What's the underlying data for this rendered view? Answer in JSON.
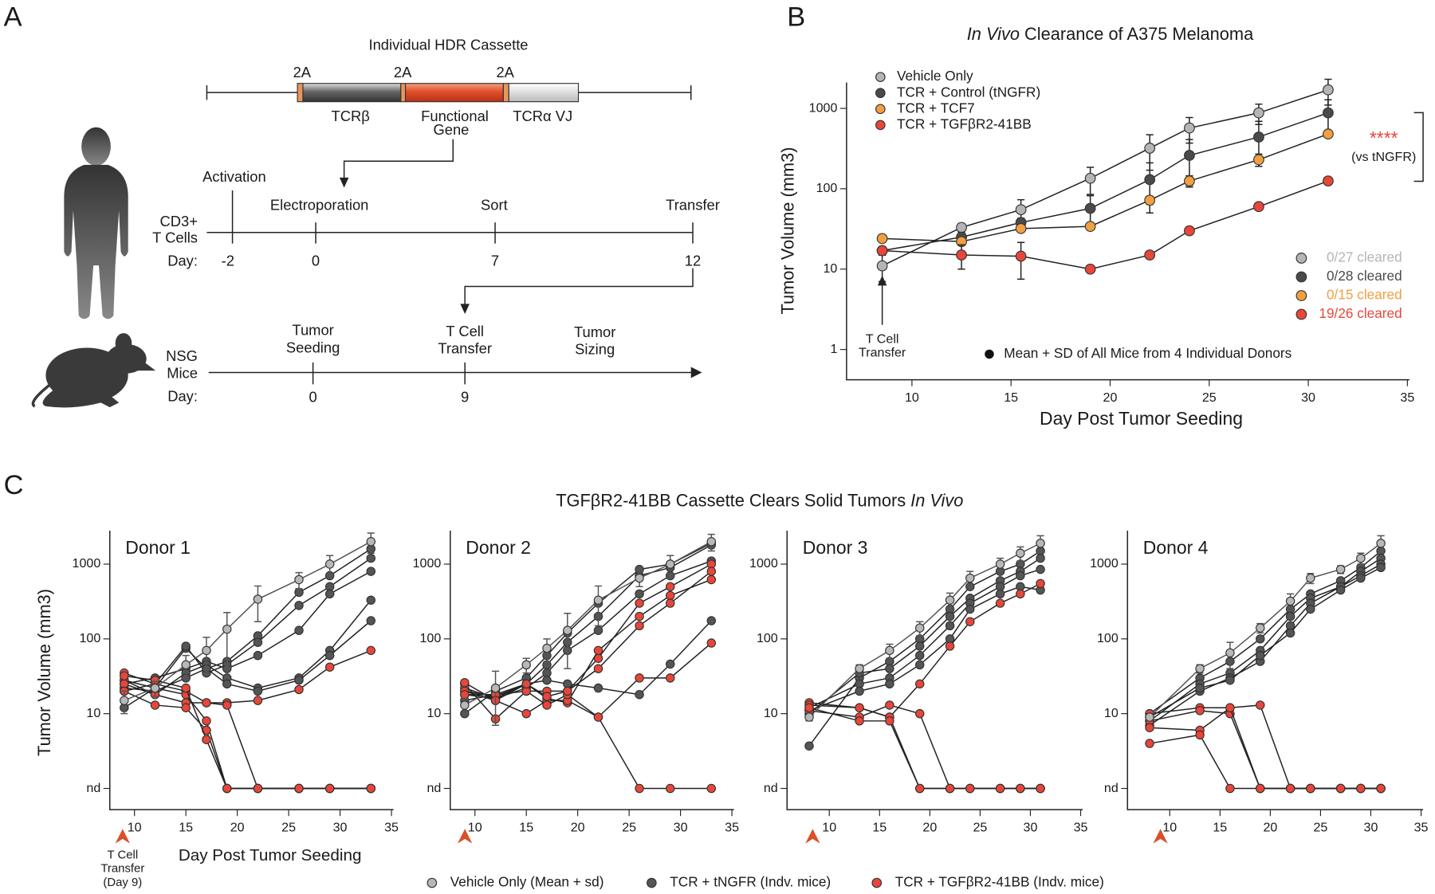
{
  "figure": {
    "panel_labels": [
      "A",
      "B",
      "C"
    ],
    "panel_c_title": "TGFβR2-41BB Cassette Clears Solid Tumors ",
    "panel_c_title_italic": "In Vivo",
    "panel_c_legend": [
      {
        "label": "Vehicle Only (Mean + sd)",
        "color": "#b8b8b8"
      },
      {
        "label": "TCR + tNGFR (Indv. mice)",
        "color": "#555555"
      },
      {
        "label": "TCR + TGFβR2-41BB (Indv. mice)",
        "color": "#e8463a"
      }
    ]
  },
  "panel_a": {
    "cassette_title": "Individual HDR Cassette",
    "cassette_2a": [
      "2A",
      "2A",
      "2A"
    ],
    "tcrb": "TCRβ",
    "gene": [
      "Functional",
      "Gene"
    ],
    "tcra": "TCRα VJ",
    "timeline1": {
      "row_label": [
        "CD3+",
        "T Cells"
      ],
      "day_label": "Day:",
      "events": [
        "Activation",
        "Electroporation",
        "Sort",
        "Transfer"
      ],
      "days": [
        -2,
        0,
        7,
        12
      ]
    },
    "timeline2": {
      "row_label": [
        "NSG",
        "Mice"
      ],
      "day_label": "Day:",
      "events": [
        [
          "Tumor",
          "Seeding"
        ],
        [
          "T Cell",
          "Transfer"
        ],
        [
          "Tumor",
          "Sizing"
        ]
      ],
      "days": [
        0,
        9
      ]
    }
  },
  "chart_data": [
    {
      "type": "line",
      "title_italic": "In Vivo",
      "title": "Clearance of A375 Melanoma",
      "x_label": "Day Post Tumor Seeding",
      "y_label": "Tumor Volume (mm3)",
      "log_y": true,
      "legend_position": "upper-left",
      "x": [
        8.5,
        12.5,
        15.5,
        19,
        22,
        24,
        27.5,
        31
      ],
      "xlim": [
        6.7,
        35.1
      ],
      "xticks": [
        10,
        15,
        20,
        25,
        30,
        35
      ],
      "ylim": [
        0.42,
        2100
      ],
      "yticks": [
        1,
        10,
        100,
        1000
      ],
      "series": [
        {
          "name": "Vehicle Only",
          "color": "#b5b5b5",
          "values": [
            11,
            33,
            55,
            135,
            320,
            570,
            880,
            1700
          ],
          "errors": [
            4,
            4,
            18,
            50,
            150,
            200,
            250,
            600
          ]
        },
        {
          "name": "TCR + Control (tNGFR)",
          "color": "#4a4a4a",
          "values": [
            17,
            25,
            38,
            57,
            130,
            260,
            440,
            880
          ],
          "errors": [
            2,
            3,
            5,
            25,
            80,
            150,
            250,
            400
          ]
        },
        {
          "name": "TCR + TCF7",
          "color": "#f0a040",
          "values": [
            24,
            22,
            32,
            34,
            72,
            125,
            230,
            480
          ],
          "errors": [
            2,
            2,
            3,
            2,
            8,
            20,
            40,
            40
          ]
        },
        {
          "name": "TCR + TGFβR2-41BB",
          "color": "#e8463a",
          "values": [
            17,
            15,
            14.5,
            10,
            15,
            30,
            60,
            125
          ],
          "errors": [
            2,
            5,
            7,
            0.6,
            1,
            2,
            3,
            5
          ]
        }
      ],
      "cleared": [
        "0/27 cleared",
        "0/28 cleared",
        "0/15 cleared",
        "19/26 cleared"
      ],
      "significance": "****",
      "significance_note": "(vs tNGFR)",
      "arrow_label": [
        "T Cell",
        "Transfer"
      ],
      "footnote": "Mean + SD of All Mice from 4 Individual Donors"
    },
    {
      "type": "line",
      "title": "Donor 1",
      "y_label": "Tumor Volume (mm3)",
      "x_label": "Day Post Tumor Seeding",
      "annotation": [
        "T Cell",
        "Transfer",
        "(Day 9)"
      ],
      "log_y": true,
      "x": [
        9,
        12,
        15,
        17,
        19,
        22,
        26,
        29,
        33
      ],
      "xlim": [
        7.6,
        35.2
      ],
      "xticks": [
        10,
        15,
        20,
        25,
        30,
        35
      ],
      "ylim": [
        0.52,
        2800
      ],
      "yticks": [
        {
          "value": 1,
          "label": "nd"
        },
        10,
        100,
        1000
      ],
      "vehicle": {
        "values": [
          15,
          22,
          45,
          70,
          135,
          340,
          620,
          1000,
          2000
        ],
        "errors": [
          5,
          5,
          15,
          35,
          90,
          170,
          150,
          300,
          600
        ]
      },
      "tngfr": [
        [
          12,
          22,
          75,
          40,
          50,
          110,
          420,
          700,
          1600
        ],
        [
          20,
          25,
          80,
          35,
          45,
          90,
          280,
          500,
          1200
        ],
        [
          25,
          30,
          40,
          50,
          40,
          60,
          130,
          400,
          800
        ],
        [
          28,
          18,
          35,
          45,
          30,
          22,
          30,
          70,
          330
        ],
        [
          22,
          20,
          30,
          40,
          25,
          20,
          28,
          60,
          175
        ]
      ],
      "tgfbr2": [
        [
          35,
          25,
          20,
          14,
          14,
          15,
          21,
          42,
          70
        ],
        [
          28,
          22,
          18,
          8,
          1,
          1,
          1,
          1,
          1
        ],
        [
          25,
          18,
          14,
          14,
          13,
          1,
          1,
          1,
          1
        ],
        [
          20,
          13,
          12,
          6,
          1,
          1,
          1,
          1,
          1
        ],
        [
          32,
          28,
          22,
          4.5,
          1,
          1,
          1,
          1,
          1
        ]
      ]
    },
    {
      "type": "line",
      "title": "Donor 2",
      "log_y": true,
      "x": [
        9,
        12,
        15,
        17,
        19,
        22,
        26,
        29,
        33
      ],
      "xlim": [
        7.6,
        35.2
      ],
      "xticks": [
        10,
        15,
        20,
        25,
        30,
        35
      ],
      "ylim": [
        0.52,
        2800
      ],
      "yticks": [
        {
          "value": 1,
          "label": "nd"
        },
        10,
        100,
        1000
      ],
      "vehicle": {
        "values": [
          13,
          22,
          45,
          75,
          130,
          330,
          650,
          1000,
          2000
        ],
        "errors": [
          3,
          15,
          10,
          25,
          90,
          180,
          150,
          300,
          500
        ]
      },
      "tngfr": [
        [
          10,
          20,
          30,
          60,
          120,
          300,
          850,
          1000,
          1900
        ],
        [
          15,
          18,
          25,
          45,
          90,
          200,
          700,
          900,
          1800
        ],
        [
          18,
          16,
          22,
          35,
          70,
          130,
          400,
          700,
          1100
        ],
        [
          20,
          17,
          25,
          28,
          25,
          22,
          18,
          46,
          175
        ]
      ],
      "tgfbr2": [
        [
          25,
          8.5,
          20,
          20,
          20,
          55,
          300,
          500,
          1000
        ],
        [
          22,
          16,
          25,
          16,
          14,
          70,
          200,
          380,
          620
        ],
        [
          20,
          15,
          10,
          15,
          15,
          9,
          30,
          30,
          88
        ],
        [
          18,
          18,
          20,
          13,
          18,
          9,
          1,
          1,
          1
        ],
        [
          26,
          15,
          25,
          17,
          20,
          40,
          150,
          300,
          800
        ]
      ]
    },
    {
      "type": "line",
      "title": "Donor 3",
      "log_y": true,
      "x": [
        8,
        13,
        16,
        19,
        22,
        24,
        27,
        29,
        31
      ],
      "xlim": [
        5.8,
        35.2
      ],
      "xticks": [
        10,
        15,
        20,
        25,
        30,
        35
      ],
      "ylim": [
        0.52,
        2800
      ],
      "yticks": [
        {
          "value": 1,
          "label": "nd"
        },
        10,
        100,
        1000
      ],
      "vehicle": {
        "values": [
          9,
          40,
          70,
          140,
          330,
          650,
          1000,
          1400,
          1900
        ],
        "errors": [
          1,
          5,
          15,
          30,
          80,
          150,
          200,
          300,
          500
        ]
      },
      "tngfr": [
        [
          3.7,
          30,
          50,
          100,
          250,
          500,
          800,
          1000,
          1500
        ],
        [
          10,
          35,
          40,
          80,
          200,
          350,
          600,
          800,
          1200
        ],
        [
          12,
          25,
          30,
          60,
          150,
          300,
          500,
          700,
          850
        ],
        [
          11,
          20,
          25,
          45,
          100,
          250,
          400,
          500,
          450
        ]
      ],
      "tgfbr2": [
        [
          14,
          12,
          9,
          25,
          80,
          170,
          300,
          400,
          550
        ],
        [
          13,
          12,
          9,
          1,
          1,
          1,
          1,
          1,
          1
        ],
        [
          11,
          9,
          13,
          10,
          1,
          1,
          1,
          1,
          1
        ],
        [
          12,
          8,
          8,
          1,
          1,
          1,
          1,
          1,
          1
        ]
      ]
    },
    {
      "type": "line",
      "title": "Donor 4",
      "log_y": true,
      "x": [
        8,
        13,
        16,
        19,
        22,
        24,
        27,
        29,
        31
      ],
      "xlim": [
        5.8,
        35.2
      ],
      "xticks": [
        10,
        15,
        20,
        25,
        30,
        35
      ],
      "ylim": [
        0.52,
        2800
      ],
      "yticks": [
        {
          "value": 1,
          "label": "nd"
        },
        10,
        100,
        1000
      ],
      "vehicle": {
        "values": [
          9,
          40,
          65,
          140,
          320,
          650,
          850,
          1200,
          1900
        ],
        "errors": [
          1,
          5,
          25,
          20,
          80,
          100,
          100,
          200,
          500
        ]
      },
      "tngfr": [
        [
          10,
          30,
          50,
          100,
          250,
          400,
          600,
          900,
          1500
        ],
        [
          8,
          25,
          35,
          70,
          200,
          350,
          500,
          800,
          1200
        ],
        [
          7,
          20,
          30,
          50,
          150,
          300,
          500,
          700,
          1000
        ],
        [
          9,
          22,
          28,
          60,
          120,
          250,
          450,
          650,
          900
        ]
      ],
      "tgfbr2": [
        [
          10,
          12,
          12,
          13,
          1,
          1,
          1,
          1,
          1
        ],
        [
          8,
          11,
          10,
          1,
          1,
          1,
          1,
          1,
          1
        ],
        [
          6.5,
          6,
          12,
          1,
          1,
          1,
          1,
          1,
          1
        ],
        [
          4,
          5.2,
          1,
          1,
          1,
          1,
          1,
          1,
          1
        ]
      ]
    }
  ]
}
